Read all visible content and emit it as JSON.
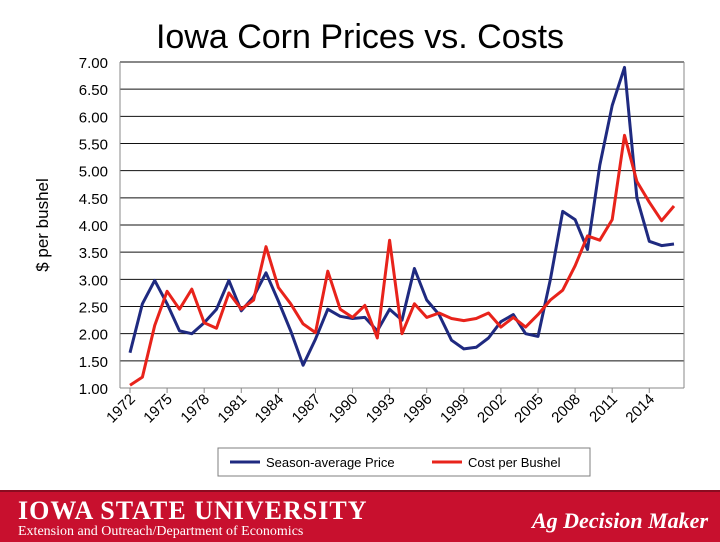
{
  "footer": {
    "university": "IOWA STATE UNIVERSITY",
    "department": "Extension and Outreach/Department of Economics",
    "brand": "Ag Decision Maker"
  },
  "colors": {
    "price": "#1f2a80",
    "cost": "#e8231b",
    "footer_bg": "#c8102e"
  },
  "chart_data": {
    "type": "line",
    "title": "Iowa Corn Prices vs. Costs",
    "xlabel": "",
    "ylabel": "$ per bushel",
    "ylim": [
      1.0,
      7.0
    ],
    "yticks": [
      "1.00",
      "1.50",
      "2.00",
      "2.50",
      "3.00",
      "3.50",
      "4.00",
      "4.50",
      "5.00",
      "5.50",
      "6.00",
      "6.50",
      "7.00"
    ],
    "xticks": [
      "1972",
      "1975",
      "1978",
      "1981",
      "1984",
      "1987",
      "1990",
      "1993",
      "1996",
      "1999",
      "2002",
      "2005",
      "2008",
      "2011",
      "2014"
    ],
    "grid": "horizontal",
    "legend_position": "bottom",
    "x": [
      1972,
      1973,
      1974,
      1975,
      1976,
      1977,
      1978,
      1979,
      1980,
      1981,
      1982,
      1983,
      1984,
      1985,
      1986,
      1987,
      1988,
      1989,
      1990,
      1991,
      1992,
      1993,
      1994,
      1995,
      1996,
      1997,
      1998,
      1999,
      2000,
      2001,
      2002,
      2003,
      2004,
      2005,
      2006,
      2007,
      2008,
      2009,
      2010,
      2011,
      2012,
      2013,
      2014,
      2015,
      2016
    ],
    "series": [
      {
        "name": "Season-average Price",
        "color": "#1f2a80",
        "values": [
          1.65,
          2.55,
          2.98,
          2.55,
          2.05,
          2.0,
          2.2,
          2.45,
          2.98,
          2.42,
          2.68,
          3.12,
          2.6,
          2.05,
          1.42,
          1.9,
          2.45,
          2.32,
          2.28,
          2.3,
          2.05,
          2.45,
          2.25,
          3.2,
          2.62,
          2.35,
          1.88,
          1.72,
          1.75,
          1.92,
          2.22,
          2.35,
          2.0,
          1.95,
          3.0,
          4.25,
          4.1,
          3.55,
          5.1,
          6.2,
          6.9,
          4.5,
          3.7,
          3.62,
          3.65
        ]
      },
      {
        "name": "Cost per Bushel",
        "color": "#e8231b",
        "values": [
          1.05,
          1.2,
          2.15,
          2.78,
          2.45,
          2.82,
          2.2,
          2.1,
          2.75,
          2.45,
          2.62,
          3.6,
          2.85,
          2.55,
          2.18,
          2.02,
          3.15,
          2.45,
          2.3,
          2.52,
          1.92,
          3.72,
          2.0,
          2.55,
          2.3,
          2.38,
          2.28,
          2.24,
          2.28,
          2.38,
          2.12,
          2.3,
          2.12,
          2.35,
          2.62,
          2.8,
          3.25,
          3.8,
          3.72,
          4.1,
          5.65,
          4.8,
          4.42,
          4.08,
          4.35
        ]
      }
    ]
  }
}
